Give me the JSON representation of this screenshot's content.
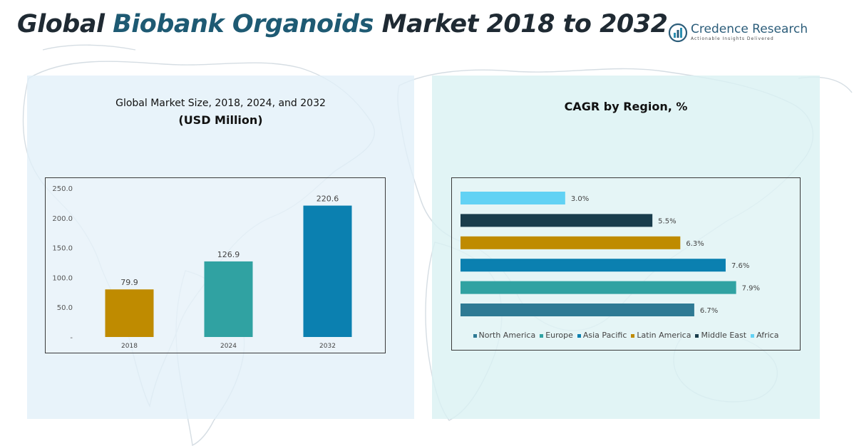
{
  "header": {
    "title_part1": "Global ",
    "title_accent": "Biobank Organoids",
    "title_part2": " Market 2018 to 2032"
  },
  "logo": {
    "name": "Credence Research",
    "tagline": "Actionable Insights Delivered",
    "icon": "credence-logo-icon"
  },
  "colors": {
    "north_america": "#2e7a94",
    "europe": "#30a2a2",
    "asia_pacific": "#0b80b0",
    "latin_america": "#bf8b00",
    "middle_east": "#193d4c",
    "africa": "#62d2f4"
  },
  "chart_data": [
    {
      "type": "bar",
      "title": "Global Market Size, 2018, 2024, and 2032",
      "subtitle": "(USD Million)",
      "categories": [
        "2018",
        "2024",
        "2032"
      ],
      "values": [
        79.9,
        126.9,
        220.6
      ],
      "value_labels": [
        "79.9",
        "126.9",
        "220.6"
      ],
      "bar_colors": [
        "#bf8b00",
        "#30a2a2",
        "#0b80b0"
      ],
      "ylim": [
        0,
        250
      ],
      "yticks": [
        0,
        50,
        100,
        150,
        200,
        250
      ],
      "ytick_labels": [
        "-",
        "50.0",
        "100.0",
        "150.0",
        "200.0",
        "250.0"
      ],
      "grid": false,
      "legend": false
    },
    {
      "type": "bar",
      "orientation": "horizontal",
      "title": "CAGR by Region, %",
      "categories": [
        "North America",
        "Europe",
        "Asia Pacific",
        "Latin America",
        "Middle East",
        "Africa"
      ],
      "values": [
        6.7,
        7.9,
        7.6,
        6.3,
        5.5,
        3.0
      ],
      "value_labels": [
        "6.7%",
        "7.9%",
        "7.6%",
        "6.3%",
        "5.5%",
        "3.0%"
      ],
      "bar_colors": [
        "#2e7a94",
        "#30a2a2",
        "#0b80b0",
        "#bf8b00",
        "#193d4c",
        "#62d2f4"
      ],
      "xlim": [
        0,
        8.5
      ],
      "grid": false,
      "legend": "bottom"
    }
  ]
}
